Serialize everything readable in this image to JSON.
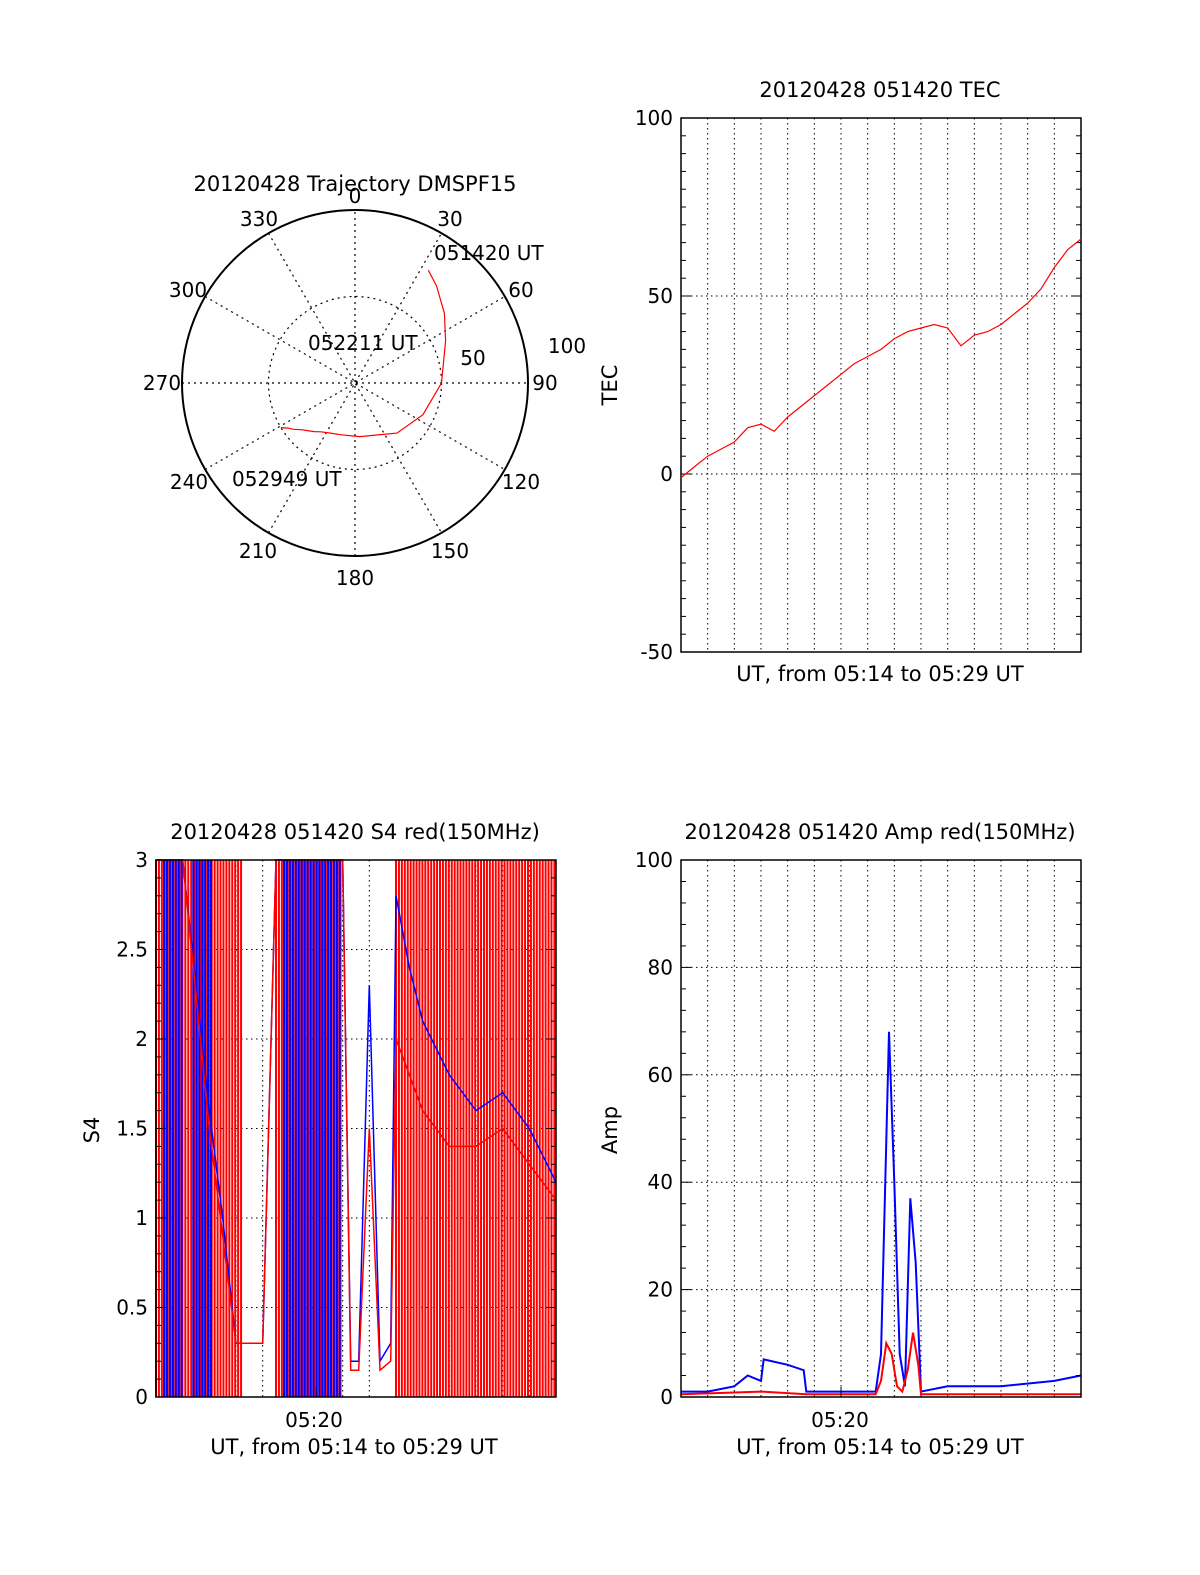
{
  "colors": {
    "background": "#ffffff",
    "axis": "#000000",
    "grid": "#000000",
    "red": "#ff0000",
    "blue": "#0000ff"
  },
  "chart_data": [
    {
      "id": "trajectory",
      "type": "scatter",
      "projection": "polar",
      "title": "20120428 Trajectory DMSPF15",
      "azimuth_ticks": [
        "0",
        "30",
        "60",
        "90",
        "120",
        "150",
        "180",
        "210",
        "240",
        "270",
        "300",
        "330"
      ],
      "radial_ticks": [
        "50",
        "100"
      ],
      "rmax": 100,
      "grid": true,
      "series": [
        {
          "color": "red",
          "azimuth": [
            33,
            40,
            52,
            65,
            90,
            115,
            140,
            175,
            196,
            206,
            215,
            220,
            225,
            229,
            233,
            236,
            239
          ],
          "elevation": [
            20,
            24,
            31,
            38,
            45,
            51,
            56,
            62,
            62,
            61,
            59,
            57,
            55,
            53,
            50,
            48,
            45
          ]
        }
      ],
      "annotations": [
        "051420 UT",
        "052211 UT",
        "052949 UT"
      ]
    },
    {
      "id": "tec",
      "type": "line",
      "title": "20120428 051420 TEC",
      "xlabel": "UT, from 05:14 to 05:29 UT",
      "ylabel": "TEC",
      "ylim": [
        -50,
        100
      ],
      "yticks": [
        -50,
        0,
        50,
        100
      ],
      "grid": true,
      "x_minutes": [
        0,
        0.5,
        1,
        1.5,
        2,
        2.5,
        3,
        3.5,
        4,
        4.5,
        5,
        5.5,
        6,
        6.5,
        7,
        7.5,
        8,
        8.5,
        9,
        9.5,
        10,
        10.5,
        11,
        11.5,
        12,
        12.5,
        13,
        13.5,
        14,
        14.5,
        15
      ],
      "series": [
        {
          "color": "red",
          "values": [
            -1,
            2,
            5,
            7,
            9,
            13,
            14,
            12,
            16,
            19,
            22,
            25,
            28,
            31,
            33,
            35,
            38,
            40,
            41,
            42,
            41,
            36,
            39,
            40,
            42,
            45,
            48,
            52,
            58,
            63,
            66
          ]
        }
      ]
    },
    {
      "id": "s4",
      "type": "line",
      "title": "20120428 051420 S4 red(150MHz)",
      "xlabel": "UT, from 05:14 to 05:29 UT",
      "ylabel": "S4",
      "ylim": [
        0,
        3
      ],
      "yticks": [
        "0",
        "0.5",
        "1",
        "1.5",
        "2",
        "2.5",
        "3"
      ],
      "xticks": [
        "05:20"
      ],
      "grid": true,
      "series": [
        {
          "color": "blue",
          "x_minutes": [
            0,
            1,
            2,
            2.5,
            3,
            3.5,
            4,
            4.5,
            5,
            6,
            7,
            7.3,
            7.6,
            8,
            8.4,
            8.8,
            9,
            9.5,
            10,
            11,
            12,
            13,
            14,
            15
          ],
          "values": [
            3,
            3,
            1.6,
            1.0,
            0.3,
            0.3,
            0.3,
            3,
            3,
            3,
            3,
            0.2,
            0.2,
            2.3,
            0.2,
            0.3,
            2.8,
            2.4,
            2.1,
            1.8,
            1.6,
            1.7,
            1.5,
            1.2
          ]
        },
        {
          "color": "red",
          "x_minutes": [
            0,
            1,
            2,
            2.5,
            3,
            3.5,
            4,
            4.5,
            5,
            6,
            7,
            7.3,
            7.6,
            8,
            8.4,
            8.8,
            9,
            9.5,
            10,
            11,
            12,
            13,
            14,
            15
          ],
          "values": [
            3,
            3,
            1.5,
            0.9,
            0.3,
            0.3,
            0.3,
            3,
            3,
            3,
            3,
            0.15,
            0.15,
            1.5,
            0.15,
            0.2,
            2.0,
            1.8,
            1.6,
            1.4,
            1.4,
            1.5,
            1.3,
            1.1
          ]
        }
      ]
    },
    {
      "id": "amp",
      "type": "line",
      "title": "20120428 051420 Amp red(150MHz)",
      "xlabel": "UT, from 05:14 to 05:29 UT",
      "ylabel": "Amp",
      "ylim": [
        0,
        100
      ],
      "yticks": [
        "0",
        "20",
        "40",
        "60",
        "80",
        "100"
      ],
      "xticks": [
        "05:20"
      ],
      "grid": true,
      "series": [
        {
          "color": "blue",
          "x_minutes": [
            0,
            1,
            2,
            2.5,
            3,
            3.1,
            4,
            4.6,
            4.7,
            6,
            7.3,
            7.5,
            7.8,
            8.0,
            8.2,
            8.4,
            8.6,
            8.8,
            9.0,
            10,
            12,
            14,
            15
          ],
          "values": [
            1,
            1,
            2,
            4,
            3,
            7,
            6,
            5,
            1,
            1,
            1,
            8,
            68,
            40,
            8,
            2,
            37,
            25,
            1,
            2,
            2,
            3,
            4
          ]
        },
        {
          "color": "red",
          "x_minutes": [
            0,
            3,
            4.7,
            7.3,
            7.5,
            7.7,
            7.9,
            8.1,
            8.3,
            8.5,
            8.7,
            8.9,
            9.0,
            15
          ],
          "values": [
            0.5,
            1,
            0.5,
            0.5,
            3,
            10,
            8,
            2,
            1,
            5,
            12,
            6,
            0.5,
            0.5
          ]
        }
      ]
    }
  ]
}
